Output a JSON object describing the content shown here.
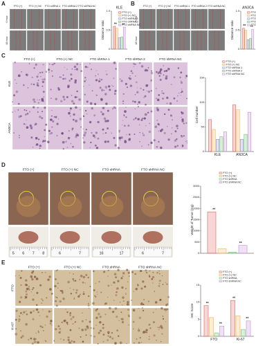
{
  "figure": {
    "A": {
      "label": "A",
      "columns": [
        "FTO (+)",
        "FTO (+) NC",
        "FTO shRNA 1",
        "FTO shRNA 2",
        "FTO shRNA NC"
      ],
      "rows": [
        "0 hour",
        "48 hour"
      ]
    },
    "B": {
      "label": "B",
      "columns": [
        "FTO (+)",
        "FTO (+) NC",
        "FTO shRNA 1",
        "FTO shRNA 2",
        "FTO shRNA NC"
      ],
      "rows": [
        "0 hour",
        "48 hour"
      ]
    },
    "C": {
      "label": "C",
      "columns": [
        "FTO (+)",
        "FTO (+) NC",
        "FTO shRNA 1",
        "FTO shRNA 2",
        "FTO shRNA NC"
      ],
      "rows": [
        "KLE",
        "AN3CA"
      ]
    },
    "D": {
      "label": "D",
      "columns": [
        "FTO (+)",
        "FTO (+) NC",
        "FTO shRNA",
        "FTO shRNA NC"
      ],
      "rulers": [
        [
          "5",
          "6",
          "7",
          "8"
        ],
        [
          "6",
          "7"
        ],
        [
          "16",
          "17"
        ],
        [
          "6",
          "7"
        ]
      ]
    },
    "E": {
      "label": "E",
      "columns": [
        "FTO (+)",
        "FTO (+) NC",
        "FTO shRNA",
        "FTO shRNA NC"
      ],
      "rows": [
        "FTO",
        "Ki-67"
      ]
    }
  },
  "chart_data": [
    {
      "type": "bar",
      "title": "KLE",
      "y_label": "Distance ratio",
      "categories": [
        null
      ],
      "series": [
        {
          "name": "FTO (+)",
          "color": "#e0605a",
          "values": [
            0.6
          ]
        },
        {
          "name": "FTO (+) NC",
          "color": "#f2b24f",
          "values": [
            0.55
          ]
        },
        {
          "name": "FTO shRNA 1",
          "color": "#8c8fd9",
          "values": [
            0.3
          ]
        },
        {
          "name": "FTO shRNA 2",
          "color": "#6cc06c",
          "values": [
            0.32
          ]
        },
        {
          "name": "FTO shRNA NC",
          "color": "#c58ad6",
          "values": [
            0.58
          ]
        }
      ],
      "ylim": [
        0,
        1
      ],
      "yticks": [
        0,
        0.5,
        {
          "value": 1,
          "label": "1.0"
        }
      ],
      "annotations": [
        "**",
        "**"
      ]
    },
    {
      "type": "bar",
      "title": "AN3CA",
      "y_label": "Distance ratio",
      "categories": [
        null
      ],
      "series": [
        {
          "name": "FTO (+)",
          "color": "#e0605a",
          "values": [
            0.55
          ]
        },
        {
          "name": "FTO (+) NC",
          "color": "#f2b24f",
          "values": [
            0.5
          ]
        },
        {
          "name": "FTO shRNA 1",
          "color": "#8c8fd9",
          "values": [
            0.25
          ]
        },
        {
          "name": "FTO shRNA 2",
          "color": "#6cc06c",
          "values": [
            0.28
          ]
        },
        {
          "name": "FTO shRNA NC",
          "color": "#c58ad6",
          "values": [
            0.52
          ]
        }
      ],
      "ylim": [
        0,
        1
      ],
      "yticks": [
        0,
        0.5,
        {
          "value": 1,
          "label": "1.0"
        }
      ],
      "annotations": [
        "**",
        "**"
      ]
    },
    {
      "type": "bar",
      "y_label": "Cell number",
      "categories": [
        "KLE",
        "AN3CA"
      ],
      "series": [
        {
          "name": "FTO (+)",
          "color": "#e0605a",
          "values": [
            65,
            95
          ]
        },
        {
          "name": "FTO (+) NC",
          "color": "#f2b24f",
          "values": [
            45,
            85
          ]
        },
        {
          "name": "FTO shRNA 1",
          "color": "#8c8fd9",
          "values": [
            25,
            25
          ]
        },
        {
          "name": "FTO shRNA 2",
          "color": "#6cc06c",
          "values": [
            30,
            35
          ]
        },
        {
          "name": "FTO shRNA NC",
          "color": "#c58ad6",
          "values": [
            40,
            80
          ]
        }
      ],
      "ylim": [
        0,
        150
      ],
      "yticks": [
        0,
        50,
        100,
        150
      ]
    },
    {
      "type": "bar",
      "y_label": "Weight of Tumor (mg)",
      "categories": [
        null
      ],
      "series": [
        {
          "name": "FTO (+)",
          "color": "#e0605a",
          "values": [
            1850
          ]
        },
        {
          "name": "FTO (+) NC",
          "color": "#f2b24f",
          "values": [
            200
          ]
        },
        {
          "name": "FTO shRNA",
          "color": "#6cc06c",
          "values": [
            50
          ]
        },
        {
          "name": "FTO shRNA NC",
          "color": "#c58ad6",
          "values": [
            350
          ]
        }
      ],
      "ylim": [
        0,
        3000
      ],
      "yticks": [
        0,
        500,
        1000,
        1500,
        2000,
        2500,
        3000
      ],
      "annotations": [
        "**",
        "**"
      ]
    },
    {
      "type": "bar",
      "y_label": "IHC Score",
      "categories": [
        "FTO",
        "Ki-67"
      ],
      "series": [
        {
          "name": "FTO (+)",
          "color": "#e0605a",
          "values": [
            9,
            10.5
          ]
        },
        {
          "name": "FTO (+) NC",
          "color": "#f2b24f",
          "values": [
            5.5,
            6
          ]
        },
        {
          "name": "FTO shRNA",
          "color": "#6cc06c",
          "values": [
            1,
            2
          ]
        },
        {
          "name": "FTO shRNA NC",
          "color": "#c58ad6",
          "values": [
            3,
            4.5
          ]
        }
      ],
      "ylim": [
        0,
        15
      ],
      "yticks": [
        0,
        5,
        10,
        15
      ],
      "annotations": [
        "**",
        "**",
        "**",
        "**"
      ]
    }
  ]
}
